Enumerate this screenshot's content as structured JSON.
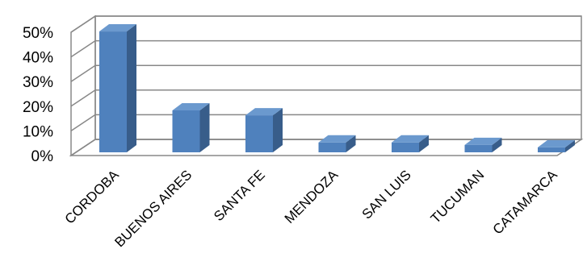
{
  "chart_data": {
    "type": "bar",
    "title": "",
    "xlabel": "",
    "ylabel": "",
    "categories": [
      "CORDOBA",
      "BUENOS AIRES",
      "SANTA FE",
      "MENDOZA",
      "SAN LUIS",
      "TUCUMAN",
      "CATAMARCA"
    ],
    "values": [
      0.49,
      0.17,
      0.15,
      0.04,
      0.04,
      0.03,
      0.02
    ],
    "ylim": [
      0,
      0.5
    ],
    "yticks": [
      0,
      0.1,
      0.2,
      0.3,
      0.4,
      0.5
    ],
    "ytick_labels": [
      "0%",
      "10%",
      "20%",
      "30%",
      "40%",
      "50%"
    ],
    "grid": true,
    "three_d": true,
    "colors": {
      "bar_front": "#4F81BD",
      "bar_side": "#385D8A",
      "bar_top": "#6B99CE",
      "grid": "#888888"
    }
  }
}
